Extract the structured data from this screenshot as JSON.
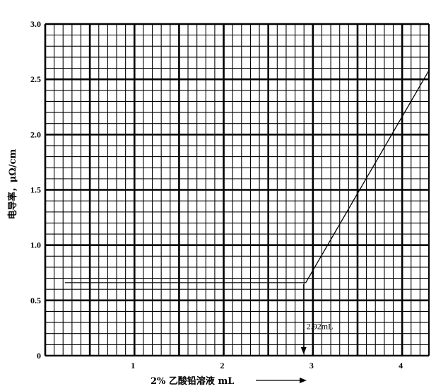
{
  "chart_data": {
    "type": "line",
    "xlabel": "2% 乙酸铅溶液 mL",
    "ylabel": "电导率，μΩ/cm",
    "xlim": [
      0,
      4.3
    ],
    "ylim": [
      0,
      3.0
    ],
    "x_ticks": [
      "1",
      "2",
      "3",
      "4"
    ],
    "y_ticks": [
      "0",
      "0.5",
      "1.0",
      "1.5",
      "2.0",
      "2.5",
      "3.0"
    ],
    "grid": true,
    "series": [
      {
        "x": [
          2.92,
          4.3
        ],
        "y": [
          0.66,
          2.58
        ]
      }
    ],
    "reference_y": 0.66,
    "reference_x_start": 0.22,
    "annotation": {
      "text": "2.92mL",
      "x": 2.92
    }
  }
}
